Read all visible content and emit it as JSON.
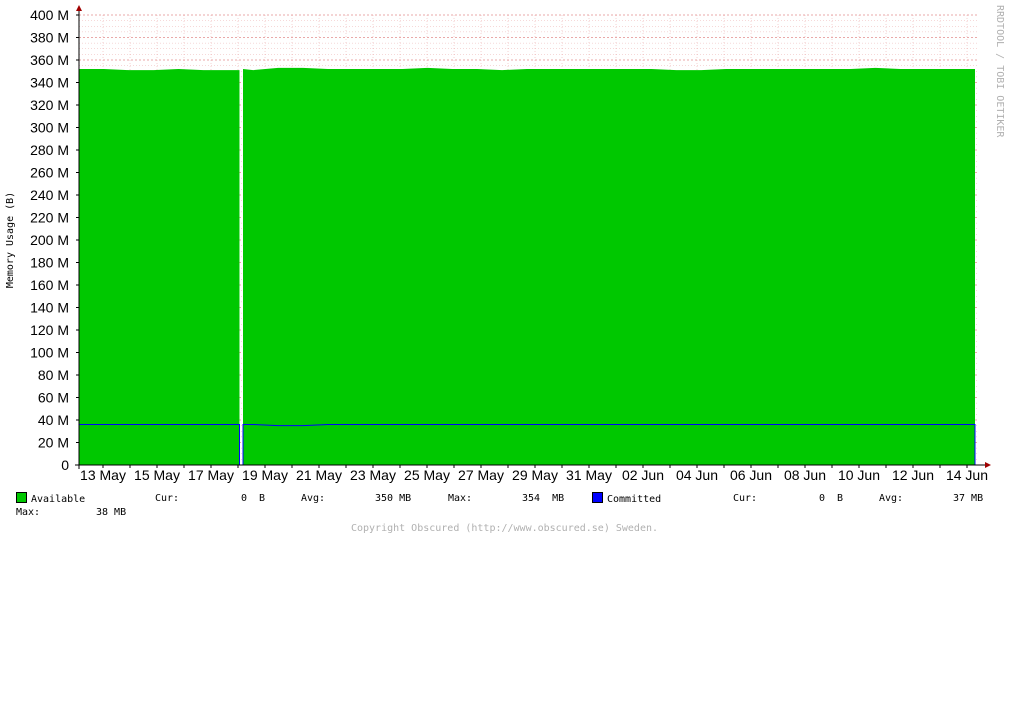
{
  "chart_data": {
    "type": "area",
    "title": "",
    "xlabel": "",
    "ylabel": "Memory Usage (B)",
    "ylim": [
      0,
      400
    ],
    "y_unit": "M",
    "y_ticks": [
      "0",
      "20 M",
      "40 M",
      "60 M",
      "80 M",
      "100 M",
      "120 M",
      "140 M",
      "160 M",
      "180 M",
      "200 M",
      "220 M",
      "240 M",
      "260 M",
      "280 M",
      "300 M",
      "320 M",
      "340 M",
      "360 M",
      "380 M",
      "400 M"
    ],
    "x_range_days": [
      11.5,
      34.0
    ],
    "x_ticks": [
      {
        "day": 13,
        "label": "13 May"
      },
      {
        "day": 15,
        "label": "15 May"
      },
      {
        "day": 17,
        "label": "17 May"
      },
      {
        "day": 19,
        "label": "19 May"
      },
      {
        "day": 21,
        "label": "21 May"
      },
      {
        "day": 23,
        "label": "23 May"
      },
      {
        "day": 25,
        "label": "25 May"
      },
      {
        "day": 27,
        "label": "27 May"
      },
      {
        "day": 29,
        "label": "29 May"
      },
      {
        "day": 31,
        "label": "31 May"
      },
      {
        "day": 33,
        "label": "02 Jun"
      },
      {
        "day": 35,
        "label": "04 Jun"
      },
      {
        "day": 37,
        "label": "06 Jun"
      },
      {
        "day": 39,
        "label": "08 Jun"
      },
      {
        "day": 41,
        "label": "10 Jun"
      },
      {
        "day": 43,
        "label": "12 Jun"
      },
      {
        "day": 45,
        "label": "14 Jun"
      }
    ],
    "gap_days": [
      17.75,
      17.85
    ],
    "series": [
      {
        "name": "Available",
        "color": "#00c800",
        "x": [
          11.5,
          12,
          13,
          14,
          15,
          16,
          17,
          17.75,
          17.85,
          18,
          19,
          20,
          21,
          22,
          23,
          24,
          25,
          26,
          27,
          28,
          29,
          30,
          31,
          32,
          33,
          34,
          35,
          36,
          37,
          38,
          39,
          40,
          41,
          42,
          43,
          44,
          45
        ],
        "values": [
          352,
          352,
          351,
          351,
          352,
          351,
          351,
          351,
          353,
          353,
          352,
          352,
          352,
          352,
          353,
          352,
          352,
          351,
          352,
          352,
          352,
          352,
          352,
          352,
          351,
          351,
          352,
          352,
          352,
          352,
          352,
          352,
          353,
          352,
          352,
          352,
          352
        ]
      },
      {
        "name": "Committed",
        "color": "#0000ff",
        "x": [
          11.5,
          12,
          13,
          14,
          15,
          16,
          17,
          17.75,
          17.85,
          18,
          19,
          20,
          21,
          22,
          23,
          24,
          25,
          26,
          27,
          28,
          29,
          30,
          31,
          32,
          33,
          34,
          35,
          36,
          37,
          38,
          39,
          40,
          41,
          42,
          43,
          44,
          45
        ],
        "values": [
          36,
          36,
          36,
          36,
          36,
          36,
          36,
          36,
          35,
          35,
          36,
          36,
          36,
          36,
          36,
          36,
          36,
          36,
          36,
          36,
          36,
          36,
          36,
          36,
          36,
          36,
          36,
          36,
          36,
          36,
          36,
          36,
          36,
          36,
          36,
          36,
          36
        ]
      }
    ],
    "legend": [
      {
        "name": "Available",
        "cur": "0  B",
        "avg": "350 MB",
        "max": "354  MB"
      },
      {
        "name": "Committed",
        "cur": "0  B",
        "avg": "37 MB",
        "max": "38 MB"
      }
    ]
  },
  "legend_text": {
    "available": "Available",
    "committed": "Committed",
    "cur_label": "Cur:",
    "avg_label": "Avg:",
    "max_label": "Max:",
    "available_cur": "0  B",
    "available_avg": "350 MB",
    "available_max": "354  MB",
    "committed_cur": "0  B",
    "committed_avg": "37 MB",
    "committed_max": "38 MB"
  },
  "watermark": "RRDTOOL / TOBI OETIKER",
  "footer": "Copyright Obscured (http://www.obscured.se) Sweden.",
  "colors": {
    "available": "#00c800",
    "committed": "#0000ff",
    "grid": "#e08080",
    "axis": "#000000",
    "arrow": "#a00000"
  }
}
